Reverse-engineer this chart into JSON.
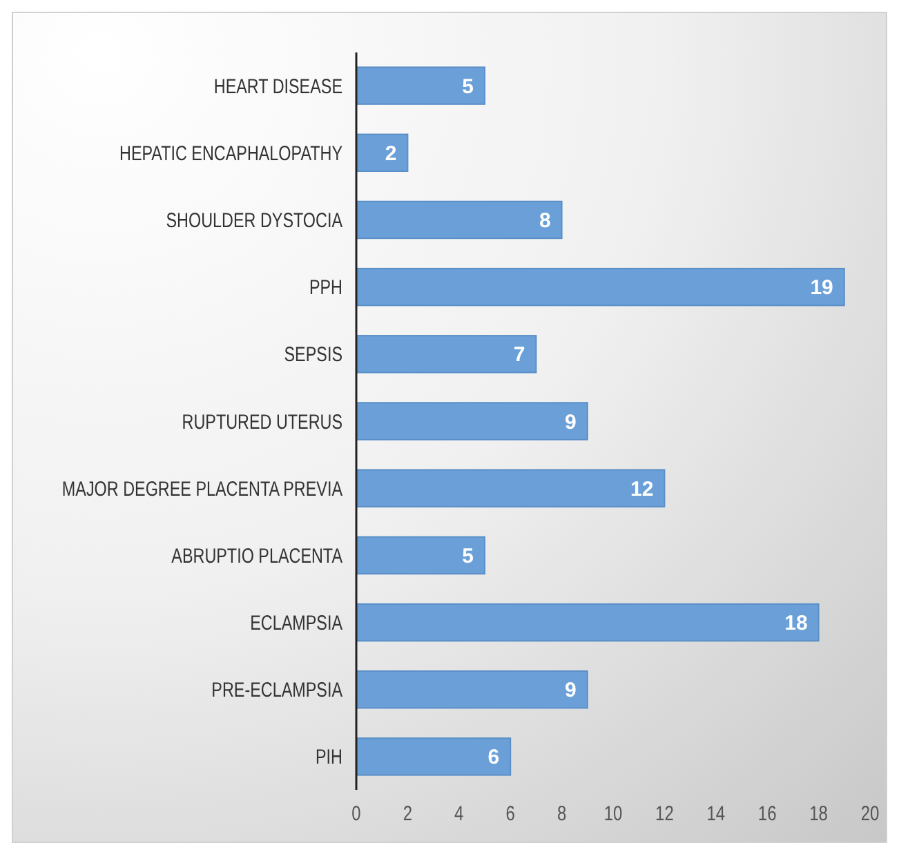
{
  "chart_data": {
    "type": "bar",
    "orientation": "horizontal",
    "categories": [
      "HEART DISEASE",
      "HEPATIC ENCAPHALOPATHY",
      "SHOULDER DYSTOCIA",
      "PPH",
      "SEPSIS",
      "RUPTURED UTERUS",
      "MAJOR DEGREE PLACENTA PREVIA",
      "ABRUPTIO PLACENTA",
      "ECLAMPSIA",
      "PRE-ECLAMPSIA",
      "PIH"
    ],
    "values": [
      5,
      2,
      8,
      19,
      7,
      9,
      12,
      5,
      18,
      9,
      6
    ],
    "color": "#6a9fd8",
    "xlim": [
      0,
      20
    ],
    "xticks": [
      0,
      2,
      4,
      6,
      8,
      10,
      12,
      14,
      16,
      18,
      20
    ],
    "data_labels": true
  }
}
